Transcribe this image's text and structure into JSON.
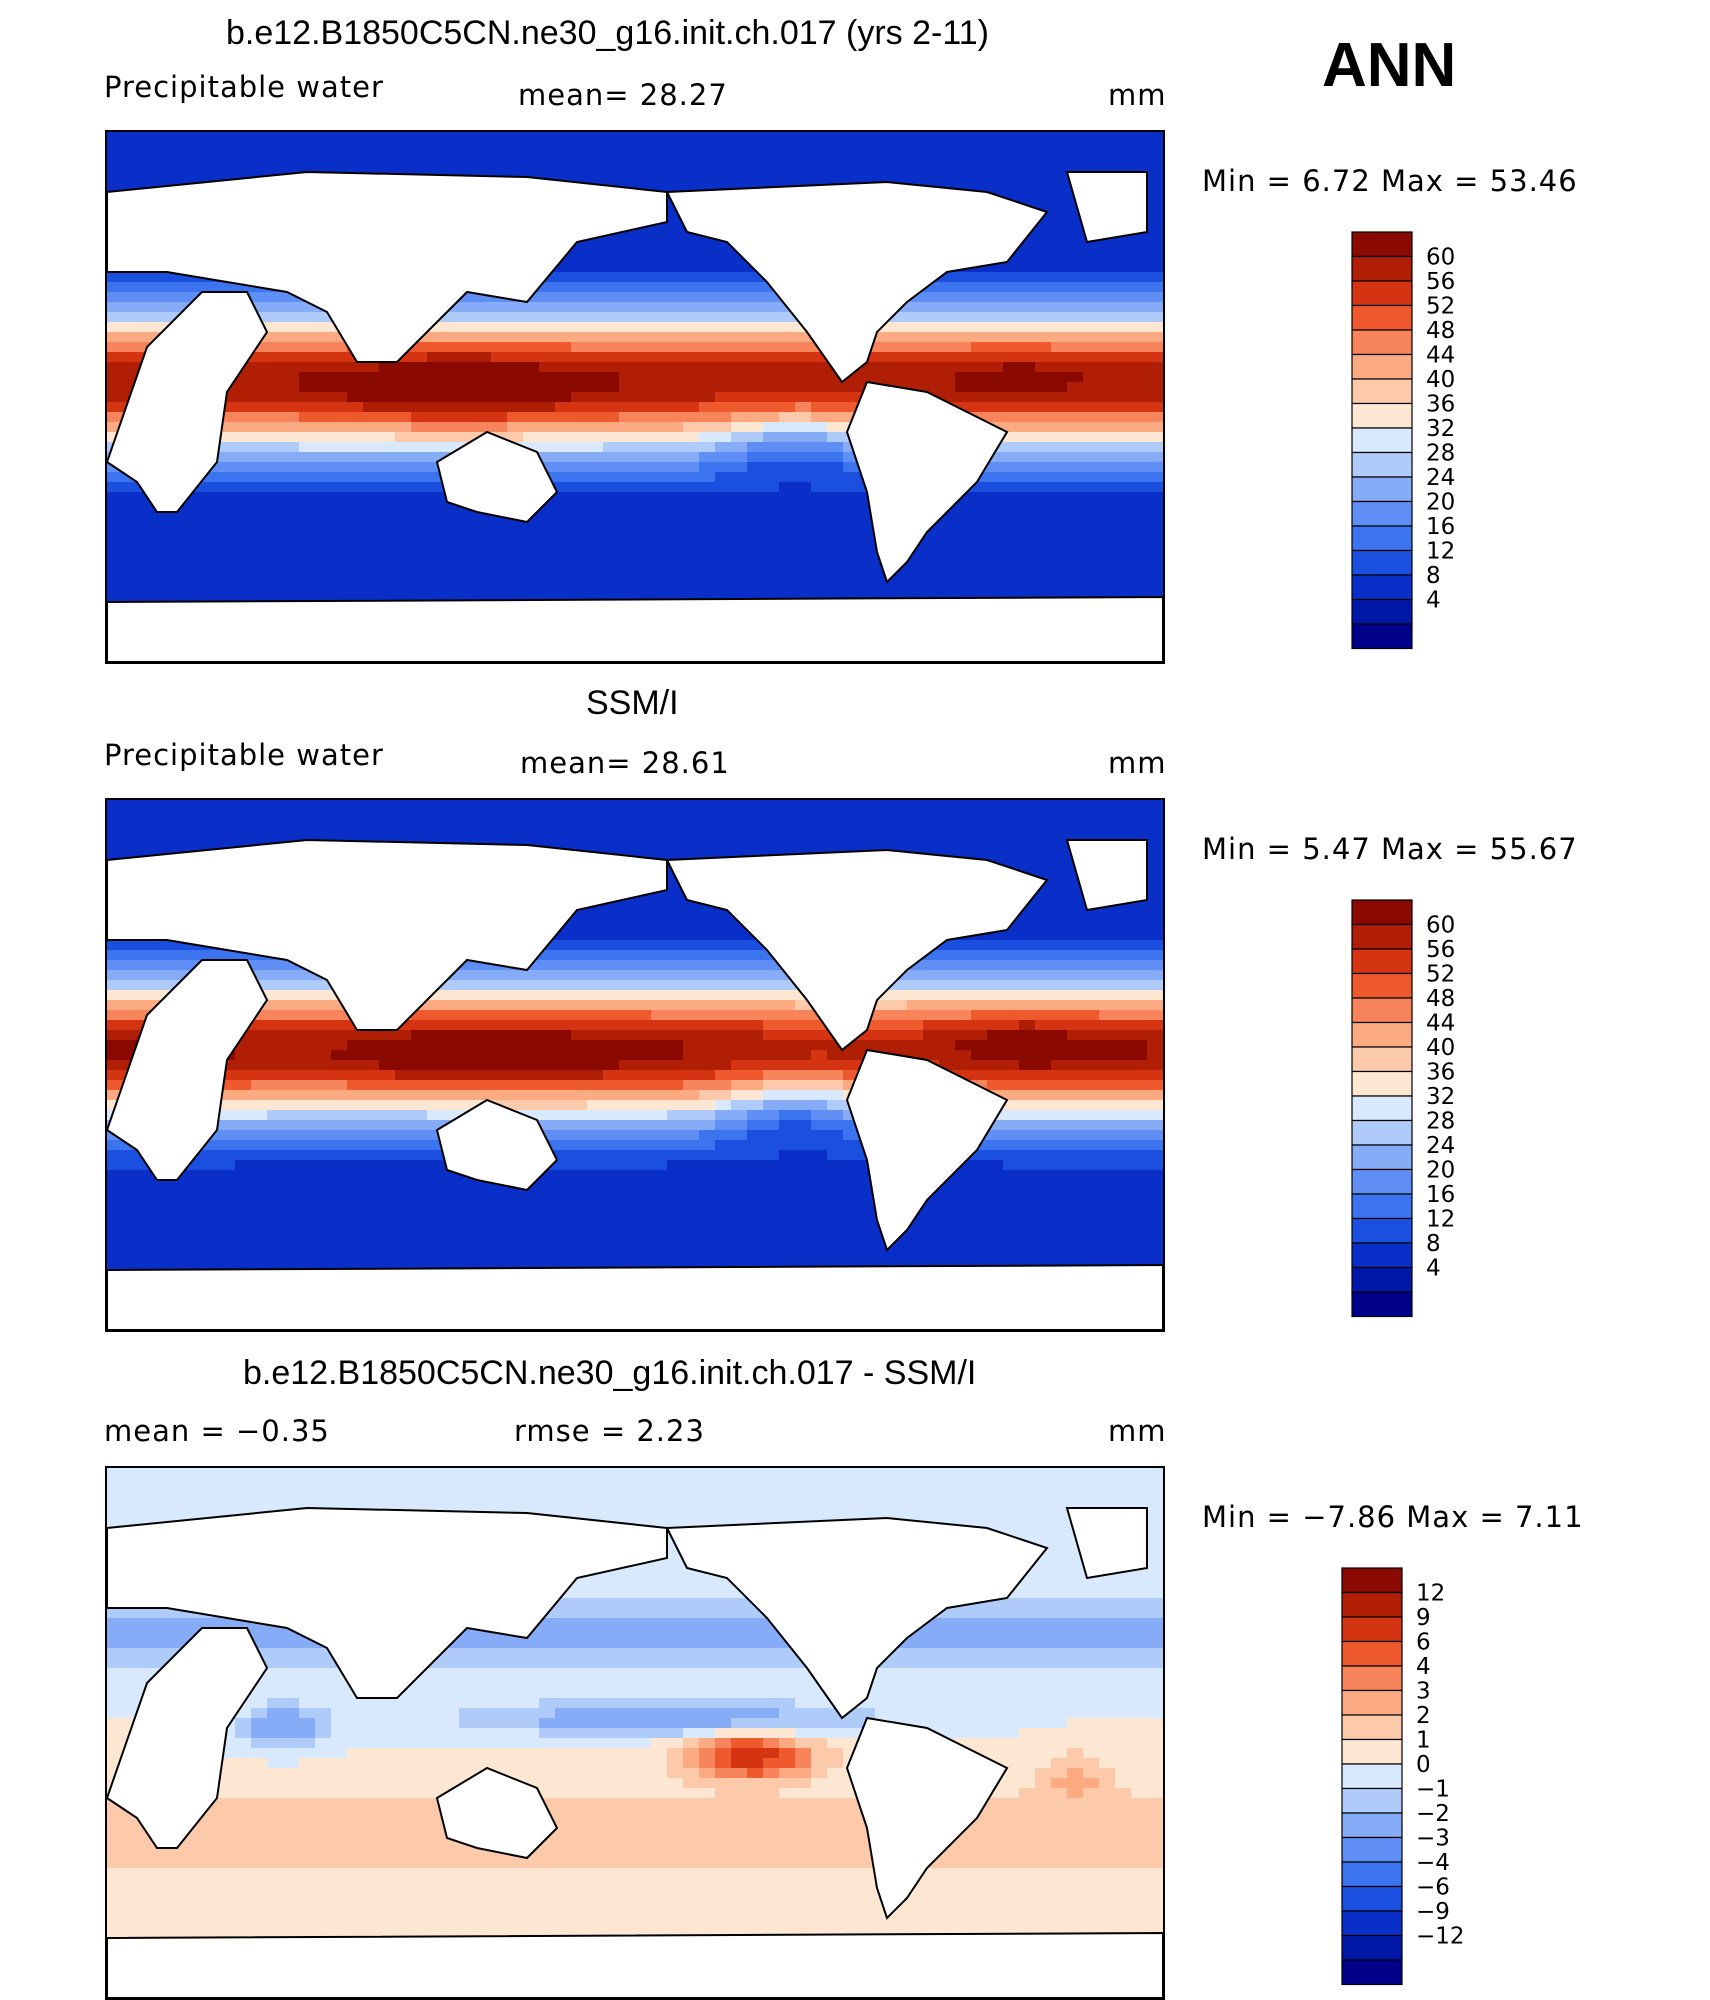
{
  "season": "ANN",
  "colors": {
    "abs": [
      "#00008b",
      "#0018a8",
      "#0a2fc8",
      "#1b4fe0",
      "#3c74f0",
      "#5f8ff5",
      "#86acf7",
      "#aecbfa",
      "#d8e8fd",
      "#fde7d3",
      "#fcc9aa",
      "#fbaa82",
      "#f7845a",
      "#ee5a2e",
      "#d43412",
      "#b11e06",
      "#8a0a02"
    ],
    "diff": [
      "#00008b",
      "#0018a8",
      "#0a2fc8",
      "#1b4fe0",
      "#3c74f0",
      "#5f8ff5",
      "#86acf7",
      "#aecbfa",
      "#d8e8fd",
      "#fde7d3",
      "#fcc9aa",
      "#fbaa82",
      "#f7845a",
      "#ee5a2e",
      "#d43412",
      "#b11e06",
      "#8a0a02"
    ]
  },
  "panels": [
    {
      "title": "b.e12.B1850C5CN.ne30_g16.init.ch.017 (yrs 2-11)",
      "left_label": "Precipitable water",
      "middle_label": "mean=   28.27",
      "units": "mm",
      "minmax": "Min  =     6.72  Max  =    53.46"
    },
    {
      "title": "SSM/I",
      "left_label": "Precipitable water",
      "middle_label": "mean=   28.61",
      "units": "mm",
      "minmax": "Min  =     5.47  Max  =    55.67"
    },
    {
      "title": "b.e12.B1850C5CN.ne30_g16.init.ch.017 - SSM/I",
      "left_label": "mean  =    −0.35",
      "middle_label": "rmse  =     2.23",
      "units": "mm",
      "minmax": "Min  =   −7.86  Max  =      7.11"
    }
  ],
  "chart_data": [
    {
      "type": "heatmap",
      "title": "b.e12.B1850C5CN.ne30_g16.init.ch.017 (yrs 2-11)",
      "variable": "Precipitable water",
      "units": "mm",
      "mean": 28.27,
      "min": 6.72,
      "max": 53.46,
      "colorbar_levels": [
        "60",
        "56",
        "52",
        "48",
        "44",
        "40",
        "36",
        "32",
        "28",
        "24",
        "20",
        "16",
        "12",
        "8",
        "4"
      ]
    },
    {
      "type": "heatmap",
      "title": "SSM/I",
      "variable": "Precipitable water",
      "units": "mm",
      "mean": 28.61,
      "min": 5.47,
      "max": 55.67,
      "colorbar_levels": [
        "60",
        "56",
        "52",
        "48",
        "44",
        "40",
        "36",
        "32",
        "28",
        "24",
        "20",
        "16",
        "12",
        "8",
        "4"
      ]
    },
    {
      "type": "heatmap",
      "title": "b.e12.B1850C5CN.ne30_g16.init.ch.017 - SSM/I",
      "units": "mm",
      "mean": -0.35,
      "rmse": 2.23,
      "min": -7.86,
      "max": 7.11,
      "colorbar_levels": [
        "12",
        "9",
        "6",
        "4",
        "3",
        "2",
        "1",
        "0",
        "−1",
        "−2",
        "−3",
        "−4",
        "−6",
        "−9",
        "−12"
      ]
    }
  ]
}
